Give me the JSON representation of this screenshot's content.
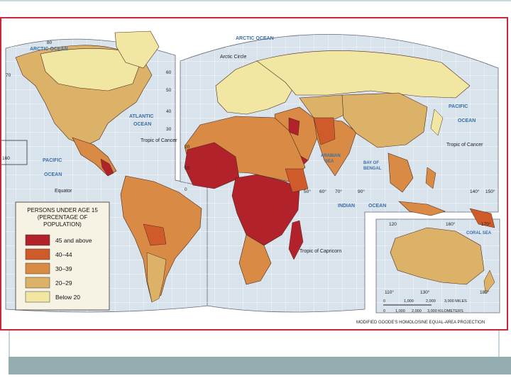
{
  "map": {
    "colors": {
      "ocean": "#d9e3ec",
      "graticule": "#ffffff",
      "border": "#4a2a20",
      "c45": "#b2222a",
      "c40": "#cf5a2a",
      "c30": "#d98a45",
      "c20": "#dcb269",
      "c0": "#f1e7a3"
    },
    "labels": {
      "arctic_ocean_left": "ARCTIC OCEAN",
      "arctic_ocean_right": "ARCTIC OCEAN",
      "arctic_circle": "Arctic Circle",
      "atlantic": "ATLANTIC",
      "atlantic_ocean": "OCEAN",
      "pacific_left": "PACIFIC",
      "pacific_left_ocean": "OCEAN",
      "pacific_right": "PACIFIC",
      "pacific_right_ocean": "OCEAN",
      "indian": "INDIAN",
      "indian_ocean": "OCEAN",
      "arabian_sea_1": "ARABIAN",
      "arabian_sea_2": "SEA",
      "bay_of_bengal_1": "BAY OF",
      "bay_of_bengal_2": "BENGAL",
      "coral_sea": "CORAL SEA",
      "tropic_cancer_left": "Tropic of Cancer",
      "tropic_cancer_right": "Tropic of Cancer",
      "tropic_capricorn": "Tropic of Capricorn",
      "equator": "Equator",
      "projection": "MODIFIED GOODE'S HOMOLOSINE EQUAL-AREA PROJECTION"
    },
    "ticks": [
      "80",
      "70",
      "60",
      "50",
      "40",
      "30",
      "20",
      "10",
      "0",
      "160",
      "150",
      "120",
      "50°",
      "60°",
      "70°",
      "80°",
      "90°",
      "140°",
      "150°",
      "160°",
      "170°",
      "180°",
      "110°",
      "130°"
    ],
    "scale": {
      "miles_values": [
        "0",
        "1,000",
        "2,000",
        "3,000 MILES"
      ],
      "km_values": [
        "0",
        "1,000",
        "2,000",
        "3,000 KILOMETERS"
      ]
    }
  },
  "legend": {
    "title_line1": "PERSONS UNDER AGE 15",
    "title_line2": "(PERCENTAGE OF",
    "title_line3": "POPULATION)",
    "items": [
      {
        "label": "45 and above",
        "color": "#b2222a"
      },
      {
        "label": "40–44",
        "color": "#cf5a2a"
      },
      {
        "label": "30–39",
        "color": "#d98a45"
      },
      {
        "label": "20–29",
        "color": "#dcb269"
      },
      {
        "label": "Below 20",
        "color": "#f1e7a3"
      }
    ]
  }
}
